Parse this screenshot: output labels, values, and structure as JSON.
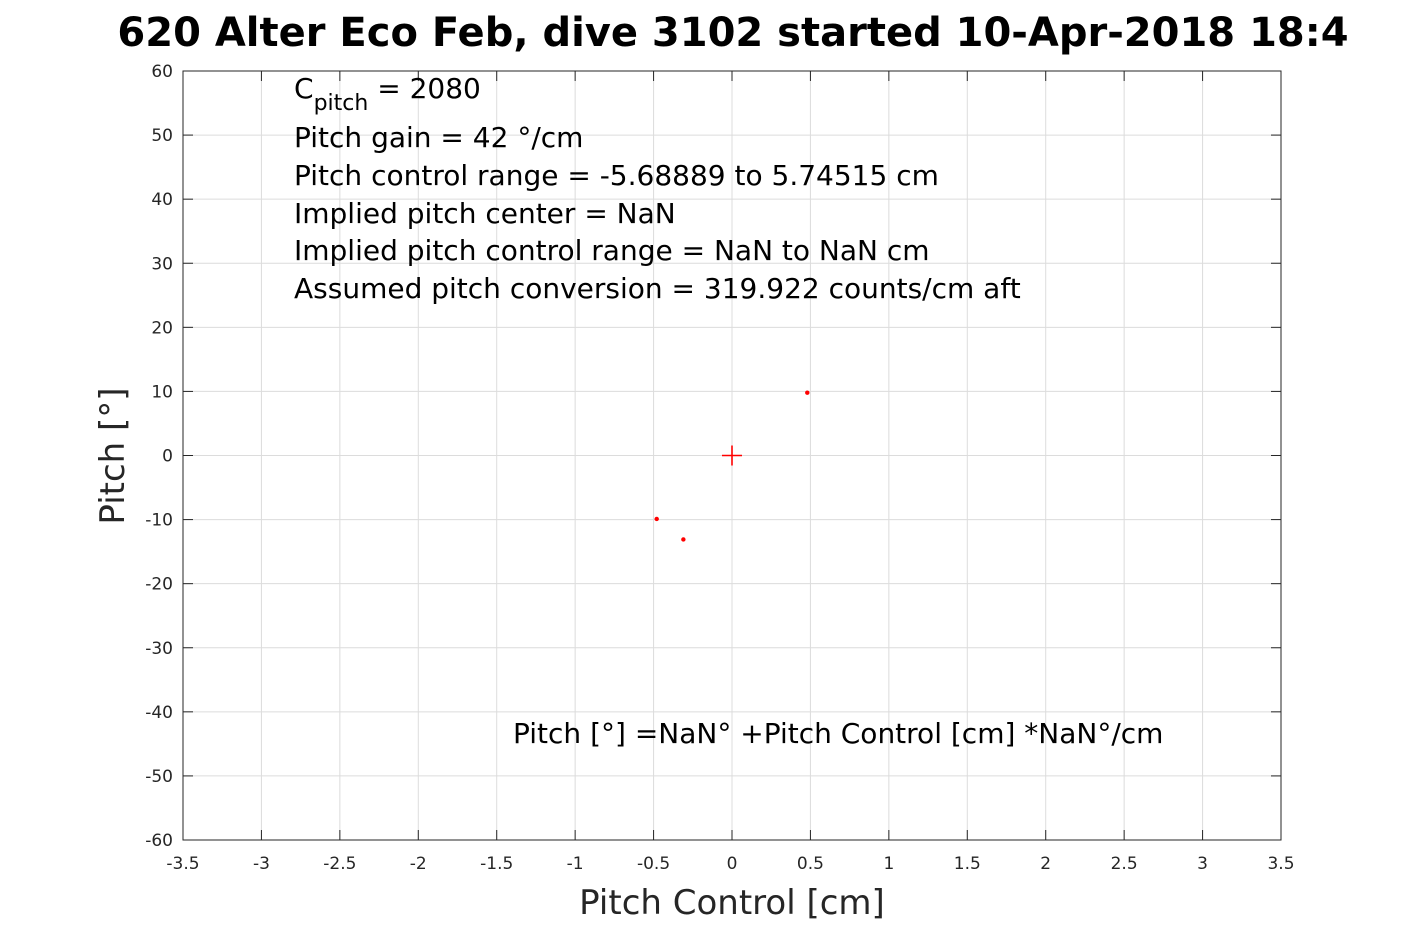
{
  "chart_data": {
    "type": "scatter",
    "title": "620 Alter Eco Feb, dive 3102 started 10-Apr-2018 18:4",
    "xlabel": "Pitch Control [cm]",
    "ylabel": "Pitch [°]",
    "xlim": [
      -3.5,
      3.5
    ],
    "ylim": [
      -60,
      60
    ],
    "xticks": [
      -3.5,
      -3,
      -2.5,
      -2,
      -1.5,
      -1,
      -0.5,
      0,
      0.5,
      1,
      1.5,
      2,
      2.5,
      3,
      3.5
    ],
    "yticks": [
      -60,
      -50,
      -40,
      -30,
      -20,
      -10,
      0,
      10,
      20,
      30,
      40,
      50,
      60
    ],
    "grid": true,
    "legend": "none",
    "marker_color": "#ff0000",
    "points": [
      {
        "x": 0.48,
        "y": 9.8
      },
      {
        "x": -0.48,
        "y": -9.9
      },
      {
        "x": -0.31,
        "y": -13.1
      }
    ],
    "center_marker": {
      "x": 0,
      "y": 0,
      "shape": "plus"
    },
    "annotations": {
      "c_pitch_symbol": "C",
      "c_pitch_subscript": "pitch",
      "c_pitch_value": " = 2080",
      "pitch_gain": "Pitch gain = 42 °/cm",
      "pitch_control_range": "Pitch control range = -5.68889 to 5.74515 cm",
      "implied_center": "Implied pitch center = NaN",
      "implied_range": "Implied pitch control range = NaN to NaN cm",
      "assumed_conversion": "Assumed pitch conversion = 319.922 counts/cm aft",
      "fit_equation": "Pitch [°] =NaN° +Pitch Control [cm] *NaN°/cm"
    }
  }
}
